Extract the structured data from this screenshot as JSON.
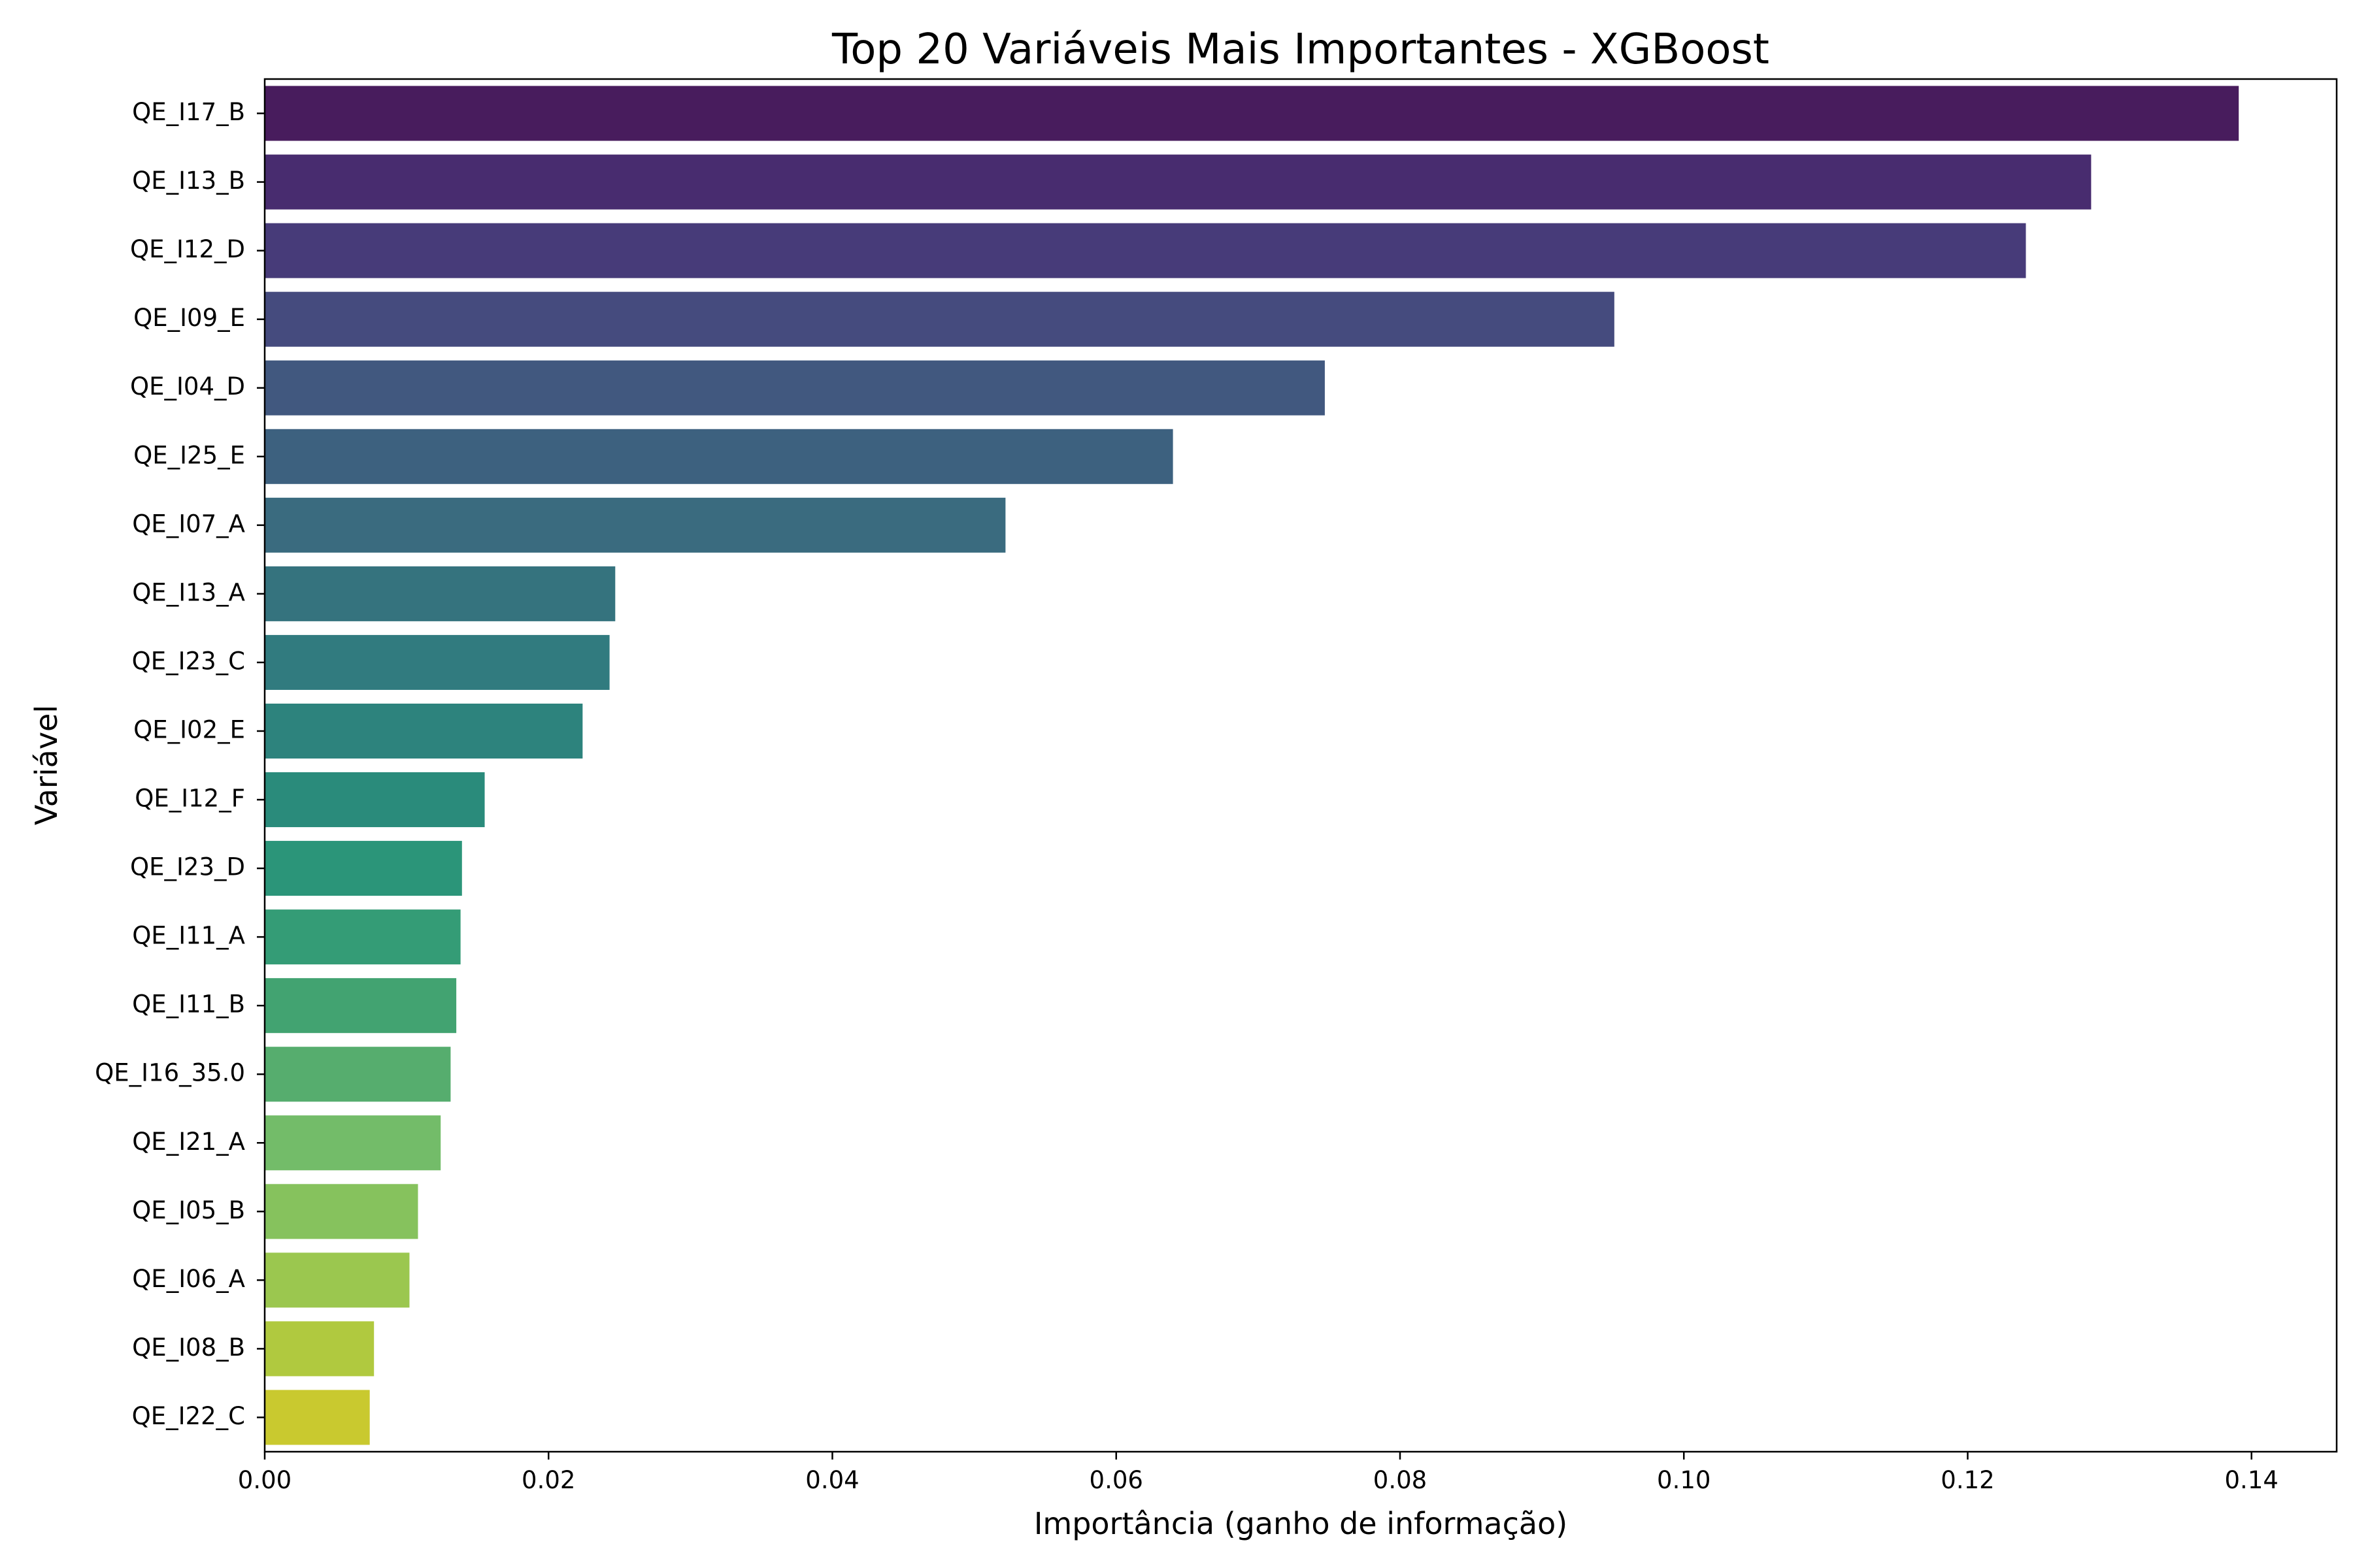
{
  "chart_data": {
    "type": "bar",
    "orientation": "horizontal",
    "title": "Top 20 Variáveis Mais Importantes - XGBoost",
    "xlabel": "Importância (ganho de informação)",
    "ylabel": "Variável",
    "xlim": [
      0,
      0.146
    ],
    "xticks": [
      "0.00",
      "0.02",
      "0.04",
      "0.06",
      "0.08",
      "0.10",
      "0.12",
      "0.14"
    ],
    "xtick_values": [
      0,
      0.02,
      0.04,
      0.06,
      0.08,
      0.1,
      0.12,
      0.14
    ],
    "grid": false,
    "legend": "none",
    "categories": [
      "QE_I17_B",
      "QE_I13_B",
      "QE_I12_D",
      "QE_I09_E",
      "QE_I04_D",
      "QE_I25_E",
      "QE_I07_A",
      "QE_I13_A",
      "QE_I23_C",
      "QE_I02_E",
      "QE_I12_F",
      "QE_I23_D",
      "QE_I11_A",
      "QE_I11_B",
      "QE_I16_35.0",
      "QE_I21_A",
      "QE_I05_B",
      "QE_I06_A",
      "QE_I08_B",
      "QE_I22_C"
    ],
    "values": [
      0.1391,
      0.1287,
      0.1241,
      0.0951,
      0.0747,
      0.064,
      0.0522,
      0.0247,
      0.0243,
      0.0224,
      0.0155,
      0.0139,
      0.0138,
      0.0135,
      0.0131,
      0.0124,
      0.0108,
      0.0102,
      0.0077,
      0.0074
    ],
    "colors": [
      "#481c5d",
      "#482c6f",
      "#473b79",
      "#454b7e",
      "#41587f",
      "#3d617f",
      "#3a6b7f",
      "#35737e",
      "#317b7f",
      "#2d837d",
      "#2a8b7b",
      "#2b9579",
      "#349c76",
      "#42a371",
      "#56ad6e",
      "#73bc69",
      "#86c25d",
      "#9bc74f",
      "#b0c93f",
      "#c9c92f"
    ]
  }
}
